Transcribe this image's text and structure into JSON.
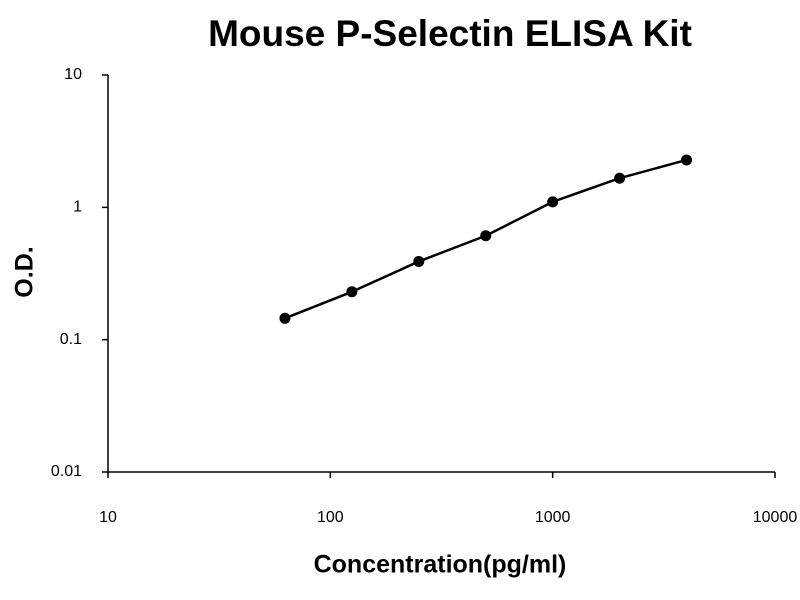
{
  "chart_data": {
    "type": "scatter",
    "title": "Mouse P-Selectin ELISA Kit",
    "xlabel": "Concentration(pg/ml)",
    "ylabel": "O.D.",
    "x": [
      62.5,
      125,
      250,
      500,
      1000,
      2000,
      4000
    ],
    "series": [
      {
        "color": "#000000",
        "values": [
          0.145,
          0.23,
          0.39,
          0.61,
          1.1,
          1.66,
          2.28
        ]
      }
    ],
    "xlim": [
      10,
      10000
    ],
    "ylim": [
      0.01,
      10
    ],
    "xticks": [
      10,
      100,
      1000,
      10000
    ],
    "yticks": [
      0.01,
      0.1,
      1,
      10
    ],
    "xscale": "log",
    "yscale": "log",
    "line": true,
    "grid": false
  }
}
